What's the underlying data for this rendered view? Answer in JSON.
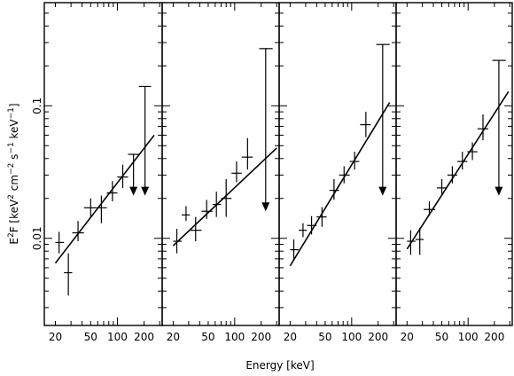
{
  "chart_data": {
    "type": "scatter",
    "layout": "four side-by-side panels sharing the y axis",
    "xlabel": "Energy [keV]",
    "ylabel_parts": {
      "e": "E",
      "e_sup": "2",
      "f_unit_open": "F [keV",
      "kev_sup": "2",
      "cm": " cm",
      "cm_sup": "−2",
      "s": " s",
      "s_sup": "−1",
      "kev": " keV",
      "kev2_sup": "−1",
      "close": "]"
    },
    "x_scale": "log",
    "y_scale": "log",
    "xlim": [
      15,
      320
    ],
    "ylim": [
      0.0022,
      0.6
    ],
    "x_tick_labels": [
      {
        "value": 20,
        "label": "20"
      },
      {
        "value": 50,
        "label": "50"
      },
      {
        "value": 100,
        "label": "100"
      },
      {
        "value": 200,
        "label": "200"
      }
    ],
    "y_tick_labels": [
      {
        "value": 0.01,
        "label": "0.01"
      },
      {
        "value": 0.1,
        "label": "0.1"
      }
    ],
    "panels": [
      {
        "points": [
          {
            "x": 22,
            "xlo": 20,
            "xhi": 25,
            "y": 0.0093,
            "ylo": 0.0077,
            "yhi": 0.0112
          },
          {
            "x": 28,
            "xlo": 25,
            "xhi": 31,
            "y": 0.0055,
            "ylo": 0.0037,
            "yhi": 0.0077
          },
          {
            "x": 36,
            "xlo": 31,
            "xhi": 42,
            "y": 0.011,
            "ylo": 0.0095,
            "yhi": 0.0135
          },
          {
            "x": 50,
            "xlo": 42,
            "xhi": 58,
            "y": 0.017,
            "ylo": 0.0145,
            "yhi": 0.02
          },
          {
            "x": 66,
            "xlo": 58,
            "xhi": 76,
            "y": 0.017,
            "ylo": 0.013,
            "yhi": 0.021
          },
          {
            "x": 88,
            "xlo": 76,
            "xhi": 100,
            "y": 0.022,
            "ylo": 0.019,
            "yhi": 0.027
          },
          {
            "x": 115,
            "xlo": 100,
            "xhi": 132,
            "y": 0.029,
            "ylo": 0.024,
            "yhi": 0.036
          }
        ],
        "upper_limits": [
          {
            "x": 152,
            "xlo": 132,
            "xhi": 175,
            "ytop": 0.043,
            "ybottom": 0.021
          },
          {
            "x": 205,
            "xlo": 175,
            "xhi": 240,
            "ytop": 0.14,
            "ybottom": 0.021
          }
        ],
        "fit": {
          "x": [
            20,
            260
          ],
          "y": [
            0.0065,
            0.06
          ]
        }
      },
      {
        "points": [
          {
            "x": 22,
            "xlo": 20,
            "xhi": 25,
            "y": 0.0095,
            "ylo": 0.0077,
            "yhi": 0.0118
          },
          {
            "x": 28,
            "xlo": 25,
            "xhi": 31,
            "y": 0.015,
            "ylo": 0.0135,
            "yhi": 0.0175
          },
          {
            "x": 36,
            "xlo": 31,
            "xhi": 42,
            "y": 0.0115,
            "ylo": 0.0095,
            "yhi": 0.0145
          },
          {
            "x": 48,
            "xlo": 42,
            "xhi": 56,
            "y": 0.016,
            "ylo": 0.014,
            "yhi": 0.0195
          },
          {
            "x": 62,
            "xlo": 56,
            "xhi": 70,
            "y": 0.018,
            "ylo": 0.0145,
            "yhi": 0.0225
          },
          {
            "x": 80,
            "xlo": 70,
            "xhi": 92,
            "y": 0.02,
            "ylo": 0.0145,
            "yhi": 0.028
          },
          {
            "x": 105,
            "xlo": 92,
            "xhi": 120,
            "y": 0.031,
            "ylo": 0.0265,
            "yhi": 0.038
          },
          {
            "x": 140,
            "xlo": 120,
            "xhi": 160,
            "y": 0.041,
            "ylo": 0.033,
            "yhi": 0.057
          }
        ],
        "upper_limits": [
          {
            "x": 225,
            "xlo": 190,
            "xhi": 270,
            "ytop": 0.27,
            "ybottom": 0.016
          }
        ],
        "fit": {
          "x": [
            20,
            300
          ],
          "y": [
            0.0088,
            0.048
          ]
        }
      },
      {
        "points": [
          {
            "x": 22,
            "xlo": 20,
            "xhi": 25,
            "y": 0.0082,
            "ylo": 0.0068,
            "yhi": 0.0098
          },
          {
            "x": 28,
            "xlo": 25,
            "xhi": 31,
            "y": 0.0115,
            "ylo": 0.0102,
            "yhi": 0.013
          },
          {
            "x": 35,
            "xlo": 31,
            "xhi": 40,
            "y": 0.0125,
            "ylo": 0.0107,
            "yhi": 0.0147
          },
          {
            "x": 46,
            "xlo": 40,
            "xhi": 52,
            "y": 0.0145,
            "ylo": 0.0122,
            "yhi": 0.0172
          },
          {
            "x": 63,
            "xlo": 56,
            "xhi": 72,
            "y": 0.023,
            "ylo": 0.0195,
            "yhi": 0.028
          },
          {
            "x": 82,
            "xlo": 72,
            "xhi": 95,
            "y": 0.03,
            "ylo": 0.026,
            "yhi": 0.035
          },
          {
            "x": 108,
            "xlo": 95,
            "xhi": 122,
            "y": 0.038,
            "ylo": 0.033,
            "yhi": 0.045
          },
          {
            "x": 145,
            "xlo": 125,
            "xhi": 165,
            "y": 0.072,
            "ylo": 0.058,
            "yhi": 0.09
          }
        ],
        "upper_limits": [
          {
            "x": 225,
            "xlo": 190,
            "xhi": 270,
            "ytop": 0.29,
            "ybottom": 0.021
          }
        ],
        "fit": {
          "x": [
            20,
            270
          ],
          "y": [
            0.0062,
            0.106
          ]
        }
      },
      {
        "points": [
          {
            "x": 22,
            "xlo": 20,
            "xhi": 25,
            "y": 0.0095,
            "ylo": 0.0075,
            "yhi": 0.0115
          },
          {
            "x": 28,
            "xlo": 25,
            "xhi": 31,
            "y": 0.0098,
            "ylo": 0.0075,
            "yhi": 0.012
          },
          {
            "x": 36,
            "xlo": 31,
            "xhi": 42,
            "y": 0.0165,
            "ylo": 0.0148,
            "yhi": 0.019
          },
          {
            "x": 50,
            "xlo": 44,
            "xhi": 57,
            "y": 0.024,
            "ylo": 0.021,
            "yhi": 0.028
          },
          {
            "x": 66,
            "xlo": 58,
            "xhi": 75,
            "y": 0.03,
            "ylo": 0.026,
            "yhi": 0.035
          },
          {
            "x": 86,
            "xlo": 75,
            "xhi": 98,
            "y": 0.038,
            "ylo": 0.033,
            "yhi": 0.045
          },
          {
            "x": 112,
            "xlo": 98,
            "xhi": 128,
            "y": 0.045,
            "ylo": 0.039,
            "yhi": 0.053
          },
          {
            "x": 148,
            "xlo": 128,
            "xhi": 170,
            "y": 0.067,
            "ylo": 0.055,
            "yhi": 0.086
          }
        ],
        "upper_limits": [
          {
            "x": 225,
            "xlo": 190,
            "xhi": 270,
            "ytop": 0.22,
            "ybottom": 0.021
          }
        ],
        "fit": {
          "x": [
            20,
            290
          ],
          "y": [
            0.0083,
            0.128
          ]
        }
      }
    ]
  }
}
